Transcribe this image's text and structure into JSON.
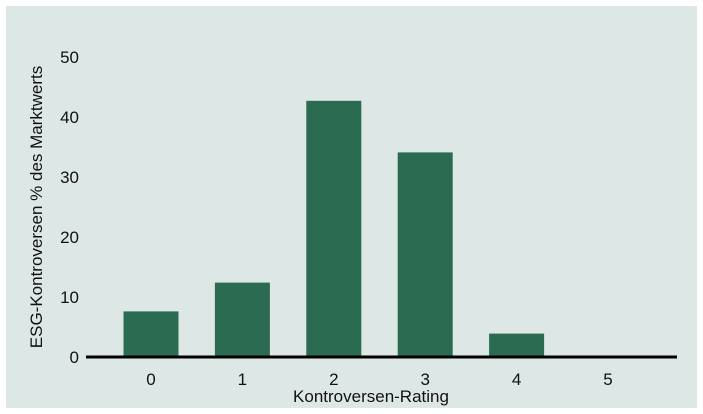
{
  "chart_data": {
    "type": "bar",
    "title": "",
    "xlabel": "Kontroversen-Rating",
    "ylabel": "ESG-Kontroversen % des Marktwerts",
    "categories": [
      "0",
      "1",
      "2",
      "3",
      "4",
      "5"
    ],
    "values": [
      7.6,
      12.4,
      42.7,
      34.1,
      3.9,
      0
    ],
    "ylim": [
      0,
      55
    ],
    "yticks": [
      0,
      10,
      20,
      30,
      40,
      50
    ],
    "grid": false,
    "bar_color": "#2b6b52",
    "background_color": "#dde8e6"
  }
}
